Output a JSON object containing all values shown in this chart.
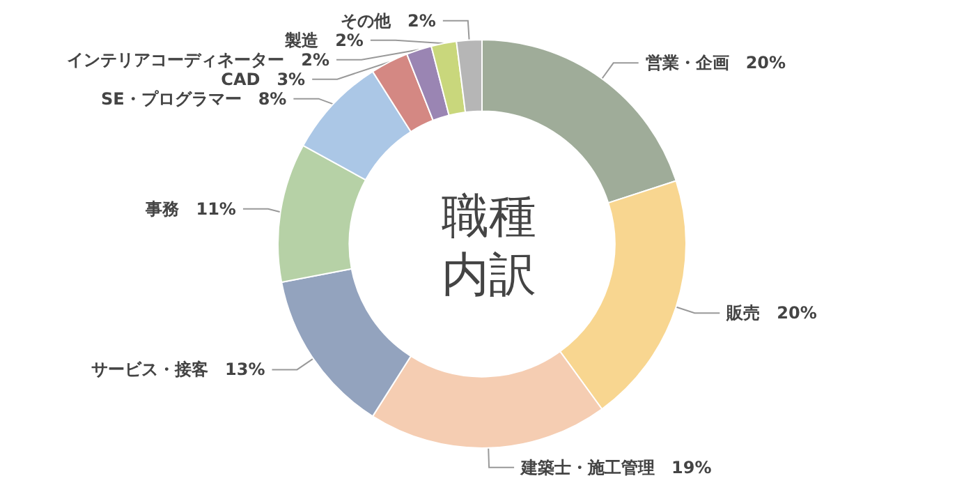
{
  "chart_data": {
    "type": "donut",
    "title": "職種内訳",
    "categories": [
      "営業・企画",
      "販売",
      "建築士・施工管理",
      "サービス・接客",
      "事務",
      "SE・プログラマー",
      "CAD",
      "インテリアコーディネーター",
      "製造",
      "その他"
    ],
    "values": [
      20,
      20,
      19,
      13,
      11,
      8,
      3,
      2,
      2,
      2
    ],
    "value_labels": [
      "20%",
      "20%",
      "19%",
      "13%",
      "11%",
      "8%",
      "3%",
      "2%",
      "2%",
      "2%"
    ],
    "colors": [
      "#9fac99",
      "#f8d690",
      "#f5cdb2",
      "#93a3be",
      "#b6d1a6",
      "#abc7e6",
      "#d48883",
      "#9a85b3",
      "#c9d77c",
      "#b6b6b6"
    ],
    "legend": false
  }
}
